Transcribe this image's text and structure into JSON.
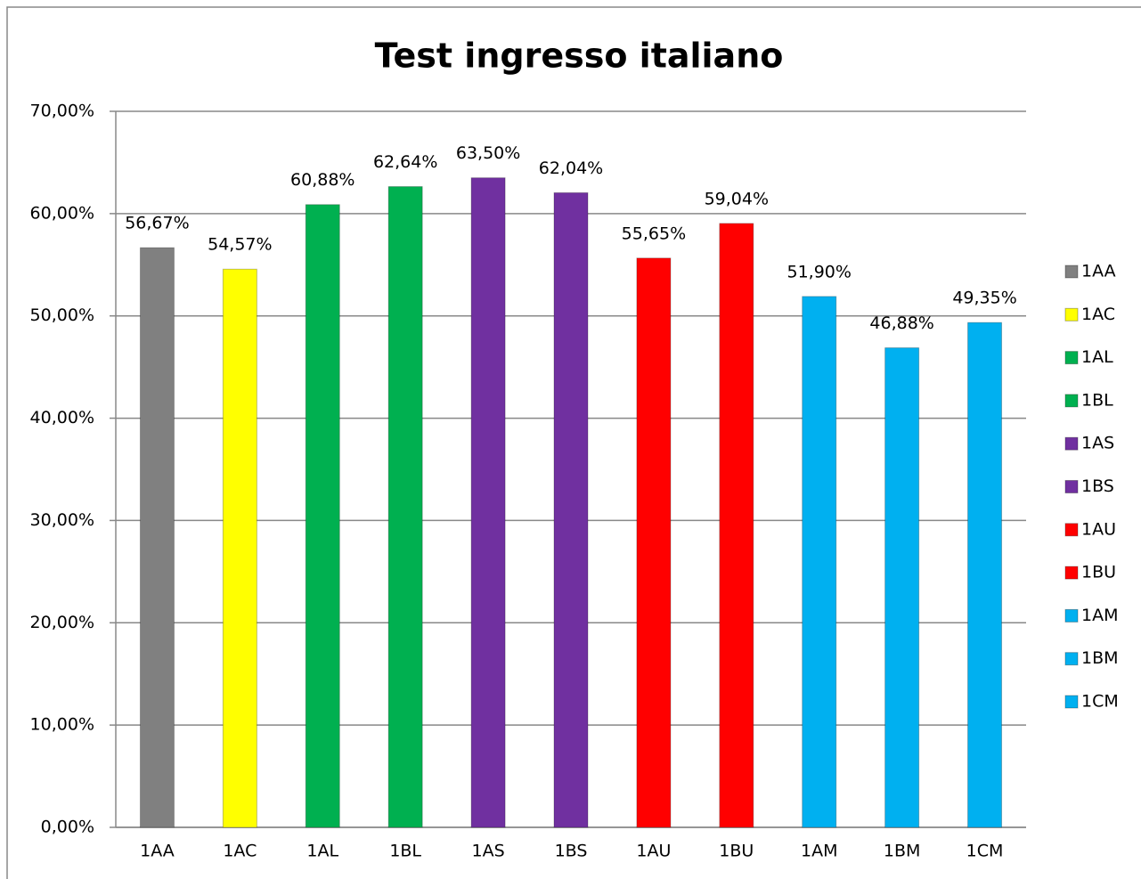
{
  "chart_data": {
    "type": "bar",
    "title": "Test ingresso italiano",
    "categories": [
      "1AA",
      "1AC",
      "1AL",
      "1BL",
      "1AS",
      "1BS",
      "1AU",
      "1BU",
      "1AM",
      "1BM",
      "1CM"
    ],
    "values": [
      56.67,
      54.57,
      60.88,
      62.64,
      63.5,
      62.04,
      55.65,
      59.04,
      51.9,
      46.88,
      49.35
    ],
    "value_labels": [
      "56,67%",
      "54,57%",
      "60,88%",
      "62,64%",
      "63,50%",
      "62,04%",
      "55,65%",
      "59,04%",
      "51,90%",
      "46,88%",
      "49,35%"
    ],
    "colors": [
      "#808080",
      "#ffff00",
      "#00b050",
      "#00b050",
      "#7030a0",
      "#7030a0",
      "#ff0000",
      "#ff0000",
      "#00b0f0",
      "#00b0f0",
      "#00b0f0"
    ],
    "ylim": [
      0,
      70
    ],
    "yticks": [
      {
        "value": 0,
        "label": "0,00%"
      },
      {
        "value": 10,
        "label": "10,00%"
      },
      {
        "value": 20,
        "label": "20,00%"
      },
      {
        "value": 30,
        "label": "30,00%"
      },
      {
        "value": 40,
        "label": "40,00%"
      },
      {
        "value": 50,
        "label": "50,00%"
      },
      {
        "value": 60,
        "label": "60,00%"
      },
      {
        "value": 70,
        "label": "70,00%"
      }
    ],
    "grid": true,
    "legend": "right"
  }
}
